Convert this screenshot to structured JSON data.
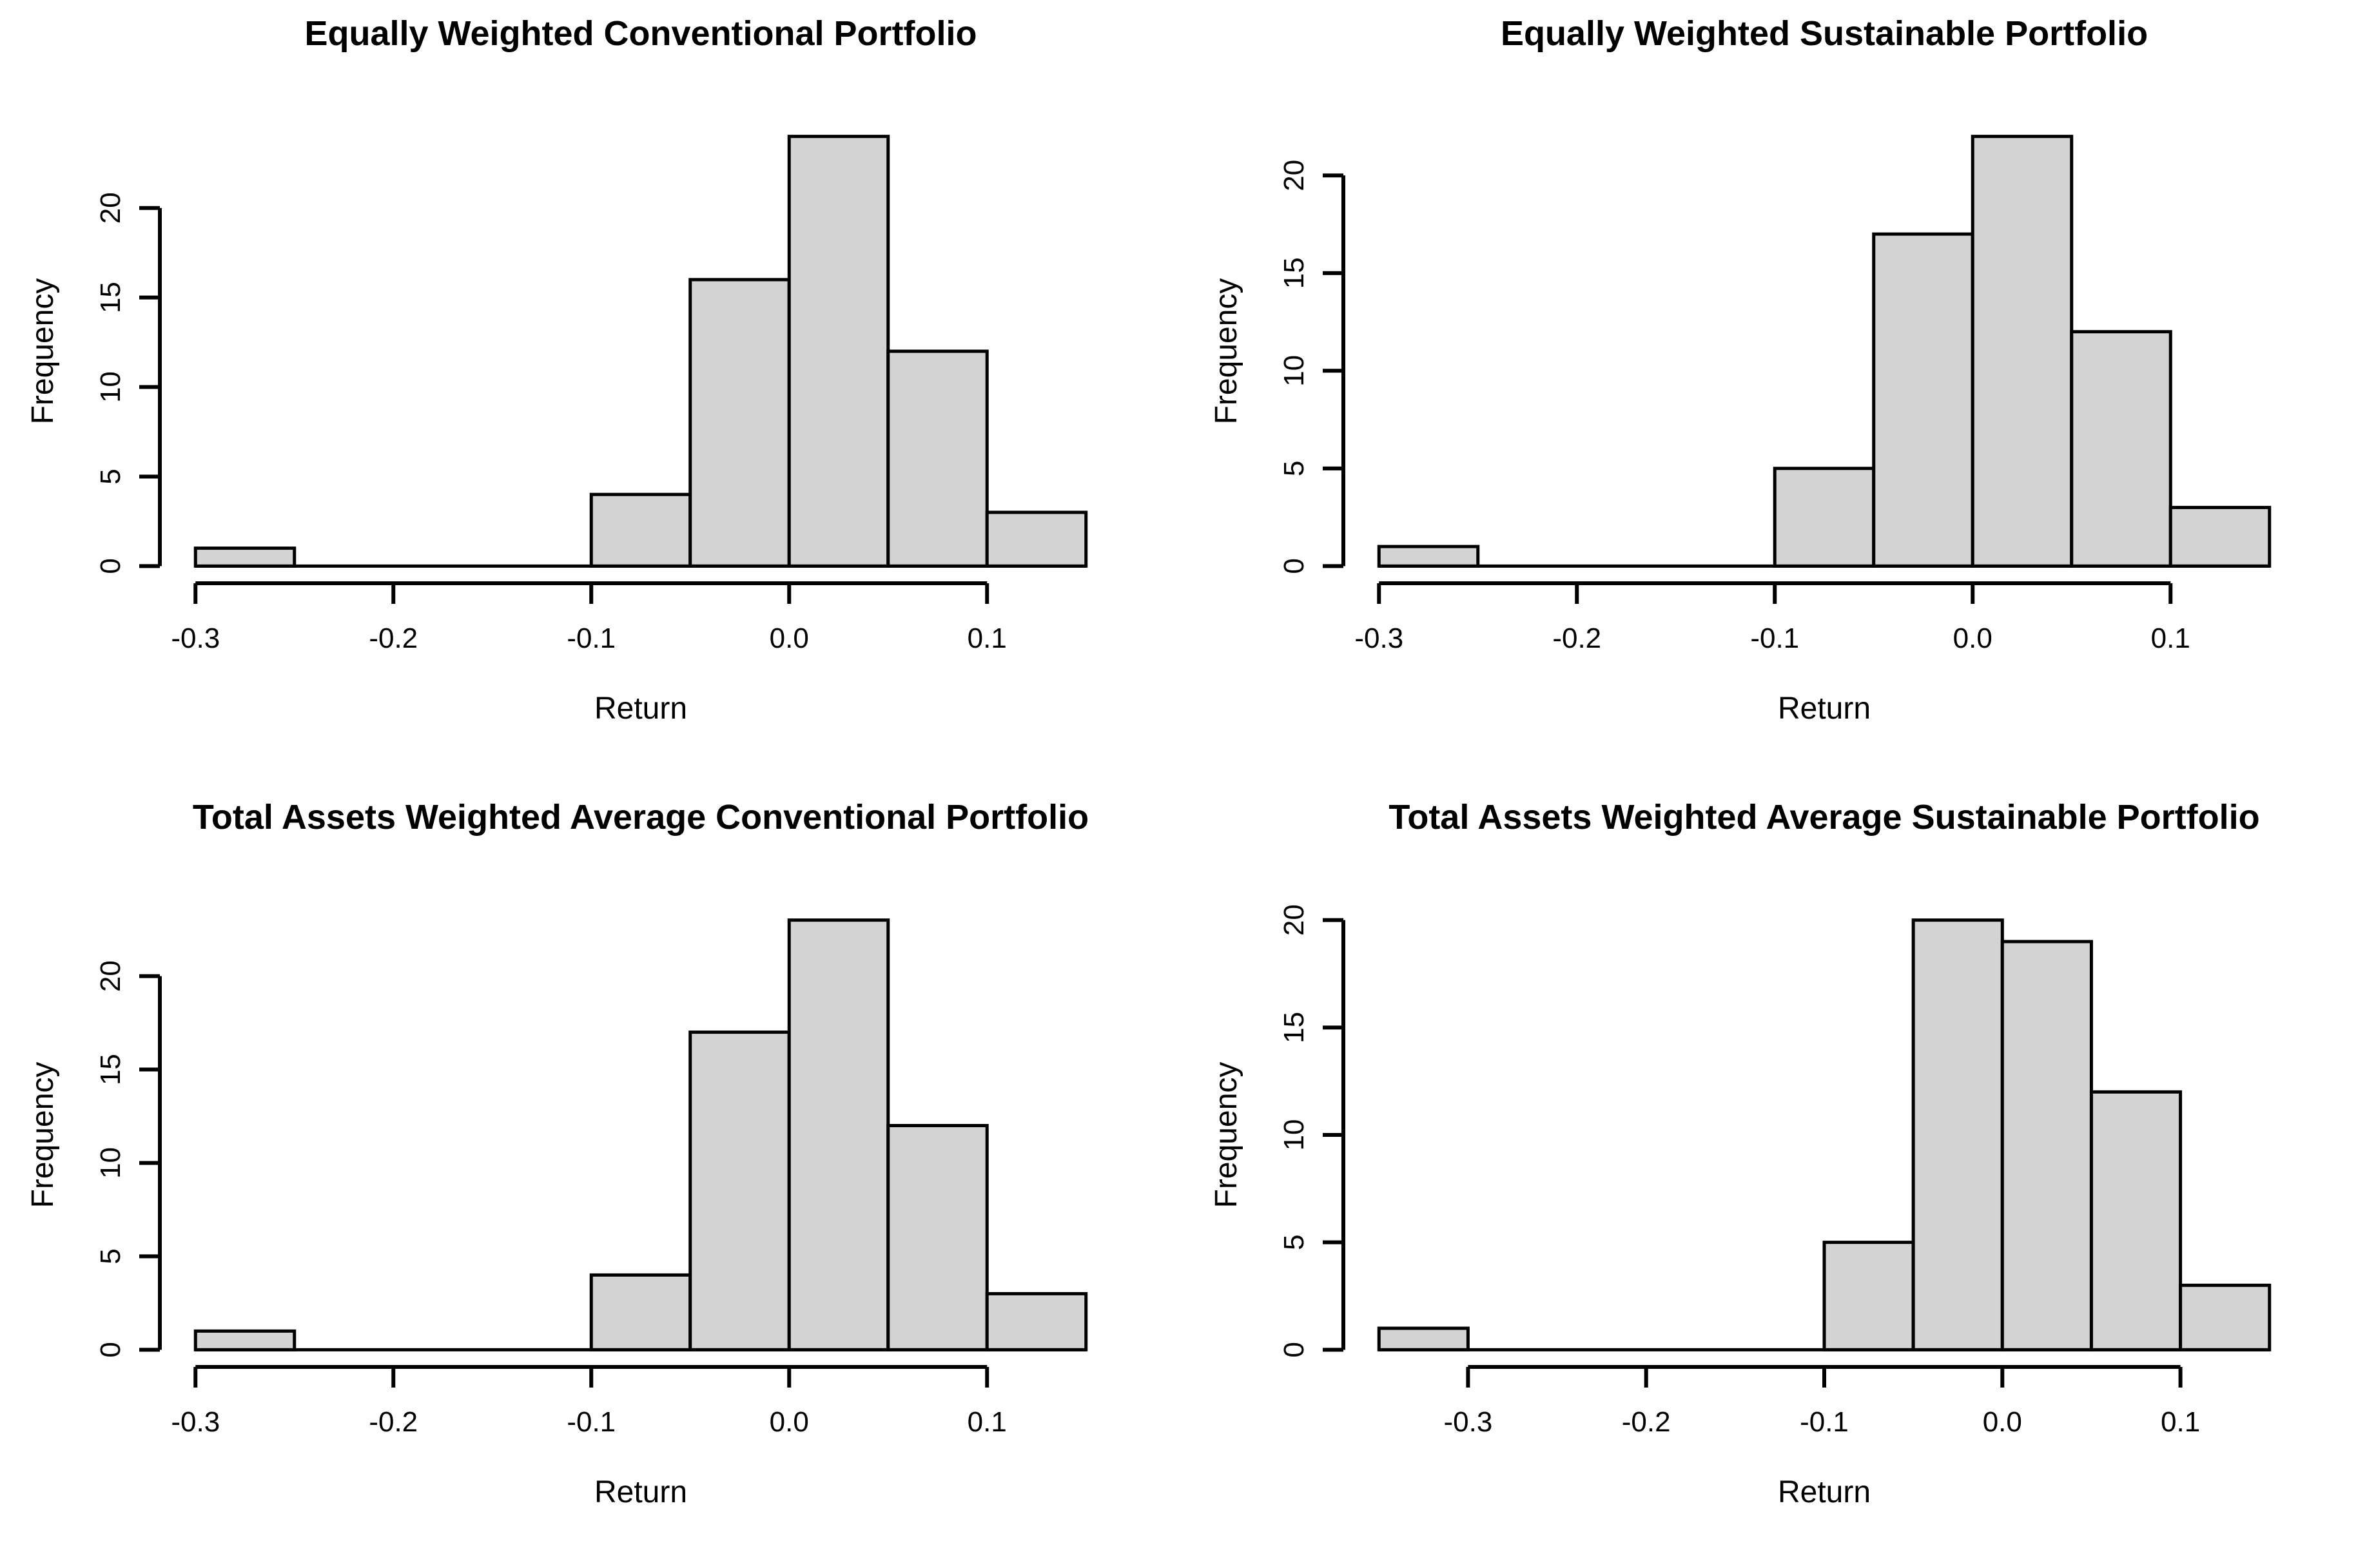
{
  "page": {
    "background_color": "#ffffff",
    "layout": "2x2-histogram-grid"
  },
  "style": {
    "bar_fill_color": "#d3d3d3",
    "bar_border_color": "#000000",
    "axis_color": "#000000",
    "text_color": "#000000"
  },
  "chart_data": [
    {
      "type": "bar",
      "subtype": "histogram",
      "title": "Equally Weighted Conventional Portfolio",
      "xlabel": "Return",
      "ylabel": "Frequency",
      "bin_edges": [
        -0.3,
        -0.25,
        -0.2,
        -0.15,
        -0.1,
        -0.05,
        0.0,
        0.05,
        0.1,
        0.15
      ],
      "counts": [
        1,
        0,
        0,
        0,
        4,
        16,
        24,
        12,
        3
      ],
      "x_ticks": [
        -0.3,
        -0.2,
        -0.1,
        0.0,
        0.1
      ],
      "x_tick_labels": [
        "-0.3",
        "-0.2",
        "-0.1",
        "0.0",
        "0.1"
      ],
      "y_ticks": [
        0,
        5,
        10,
        15,
        20
      ],
      "y_tick_labels": [
        "0",
        "5",
        "10",
        "15",
        "20"
      ],
      "ylim": [
        0,
        24
      ],
      "grid": false,
      "legend": false
    },
    {
      "type": "bar",
      "subtype": "histogram",
      "title": "Equally Weighted Sustainable Portfolio",
      "xlabel": "Return",
      "ylabel": "Frequency",
      "bin_edges": [
        -0.3,
        -0.25,
        -0.2,
        -0.15,
        -0.1,
        -0.05,
        0.0,
        0.05,
        0.1,
        0.15
      ],
      "counts": [
        1,
        0,
        0,
        0,
        5,
        17,
        22,
        12,
        3
      ],
      "x_ticks": [
        -0.3,
        -0.2,
        -0.1,
        0.0,
        0.1
      ],
      "x_tick_labels": [
        "-0.3",
        "-0.2",
        "-0.1",
        "0.0",
        "0.1"
      ],
      "y_ticks": [
        0,
        5,
        10,
        15,
        20
      ],
      "y_tick_labels": [
        "0",
        "5",
        "10",
        "15",
        "20"
      ],
      "ylim": [
        0,
        22
      ],
      "grid": false,
      "legend": false
    },
    {
      "type": "bar",
      "subtype": "histogram",
      "title": "Total Assets Weighted Average Conventional Portfolio",
      "xlabel": "Return",
      "ylabel": "Frequency",
      "bin_edges": [
        -0.3,
        -0.25,
        -0.2,
        -0.15,
        -0.1,
        -0.05,
        0.0,
        0.05,
        0.1,
        0.15
      ],
      "counts": [
        1,
        0,
        0,
        0,
        4,
        17,
        23,
        12,
        3
      ],
      "x_ticks": [
        -0.3,
        -0.2,
        -0.1,
        0.0,
        0.1
      ],
      "x_tick_labels": [
        "-0.3",
        "-0.2",
        "-0.1",
        "0.0",
        "0.1"
      ],
      "y_ticks": [
        0,
        5,
        10,
        15,
        20
      ],
      "y_tick_labels": [
        "0",
        "5",
        "10",
        "15",
        "20"
      ],
      "ylim": [
        0,
        23
      ],
      "grid": false,
      "legend": false
    },
    {
      "type": "bar",
      "subtype": "histogram",
      "title": "Total Assets Weighted Average Sustainable Portfolio",
      "xlabel": "Return",
      "ylabel": "Frequency",
      "bin_edges": [
        -0.35,
        -0.3,
        -0.25,
        -0.2,
        -0.15,
        -0.1,
        -0.05,
        0.0,
        0.05,
        0.1,
        0.15
      ],
      "counts": [
        1,
        0,
        0,
        0,
        0,
        5,
        20,
        19,
        12,
        3
      ],
      "x_ticks": [
        -0.3,
        -0.2,
        -0.1,
        0.0,
        0.1
      ],
      "x_tick_labels": [
        "-0.3",
        "-0.2",
        "-0.1",
        "0.0",
        "0.1"
      ],
      "y_ticks": [
        0,
        5,
        10,
        15,
        20
      ],
      "y_tick_labels": [
        "0",
        "5",
        "10",
        "15",
        "20"
      ],
      "ylim": [
        0,
        20
      ],
      "grid": false,
      "legend": false
    }
  ]
}
